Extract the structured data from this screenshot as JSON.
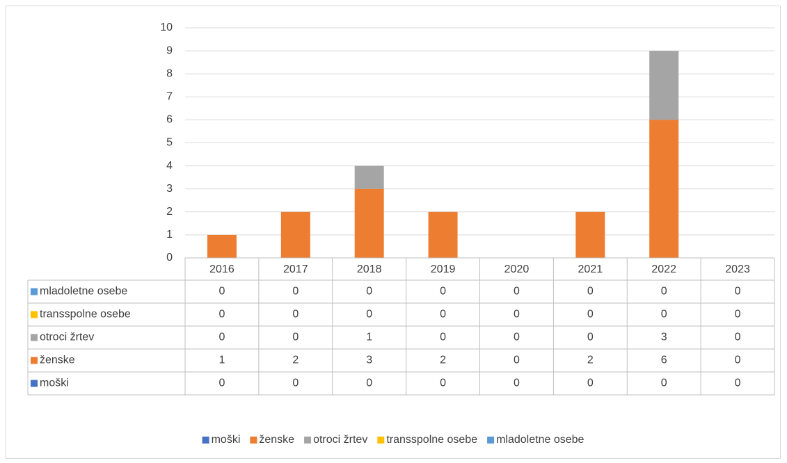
{
  "chart_data": {
    "type": "bar",
    "stacked": true,
    "data_table": true,
    "categories": [
      "2016",
      "2017",
      "2018",
      "2019",
      "2020",
      "2021",
      "2022",
      "2023"
    ],
    "series": [
      {
        "name": "moški",
        "color": "#4472c4",
        "values": [
          0,
          0,
          0,
          0,
          0,
          0,
          0,
          0
        ]
      },
      {
        "name": "ženske",
        "color": "#ed7d31",
        "values": [
          1,
          2,
          3,
          2,
          0,
          2,
          6,
          0
        ]
      },
      {
        "name": "otroci žrtev",
        "color": "#a5a5a5",
        "values": [
          0,
          0,
          1,
          0,
          0,
          0,
          3,
          0
        ]
      },
      {
        "name": "transspolne osebe",
        "color": "#ffc000",
        "values": [
          0,
          0,
          0,
          0,
          0,
          0,
          0,
          0
        ]
      },
      {
        "name": "mladoletne osebe",
        "color": "#5b9bd5",
        "values": [
          0,
          0,
          0,
          0,
          0,
          0,
          0,
          0
        ]
      }
    ],
    "ylim": [
      0,
      10
    ],
    "yticks": [
      0,
      1,
      2,
      3,
      4,
      5,
      6,
      7,
      8,
      9,
      10
    ],
    "grid": true,
    "legend": "bottom"
  }
}
